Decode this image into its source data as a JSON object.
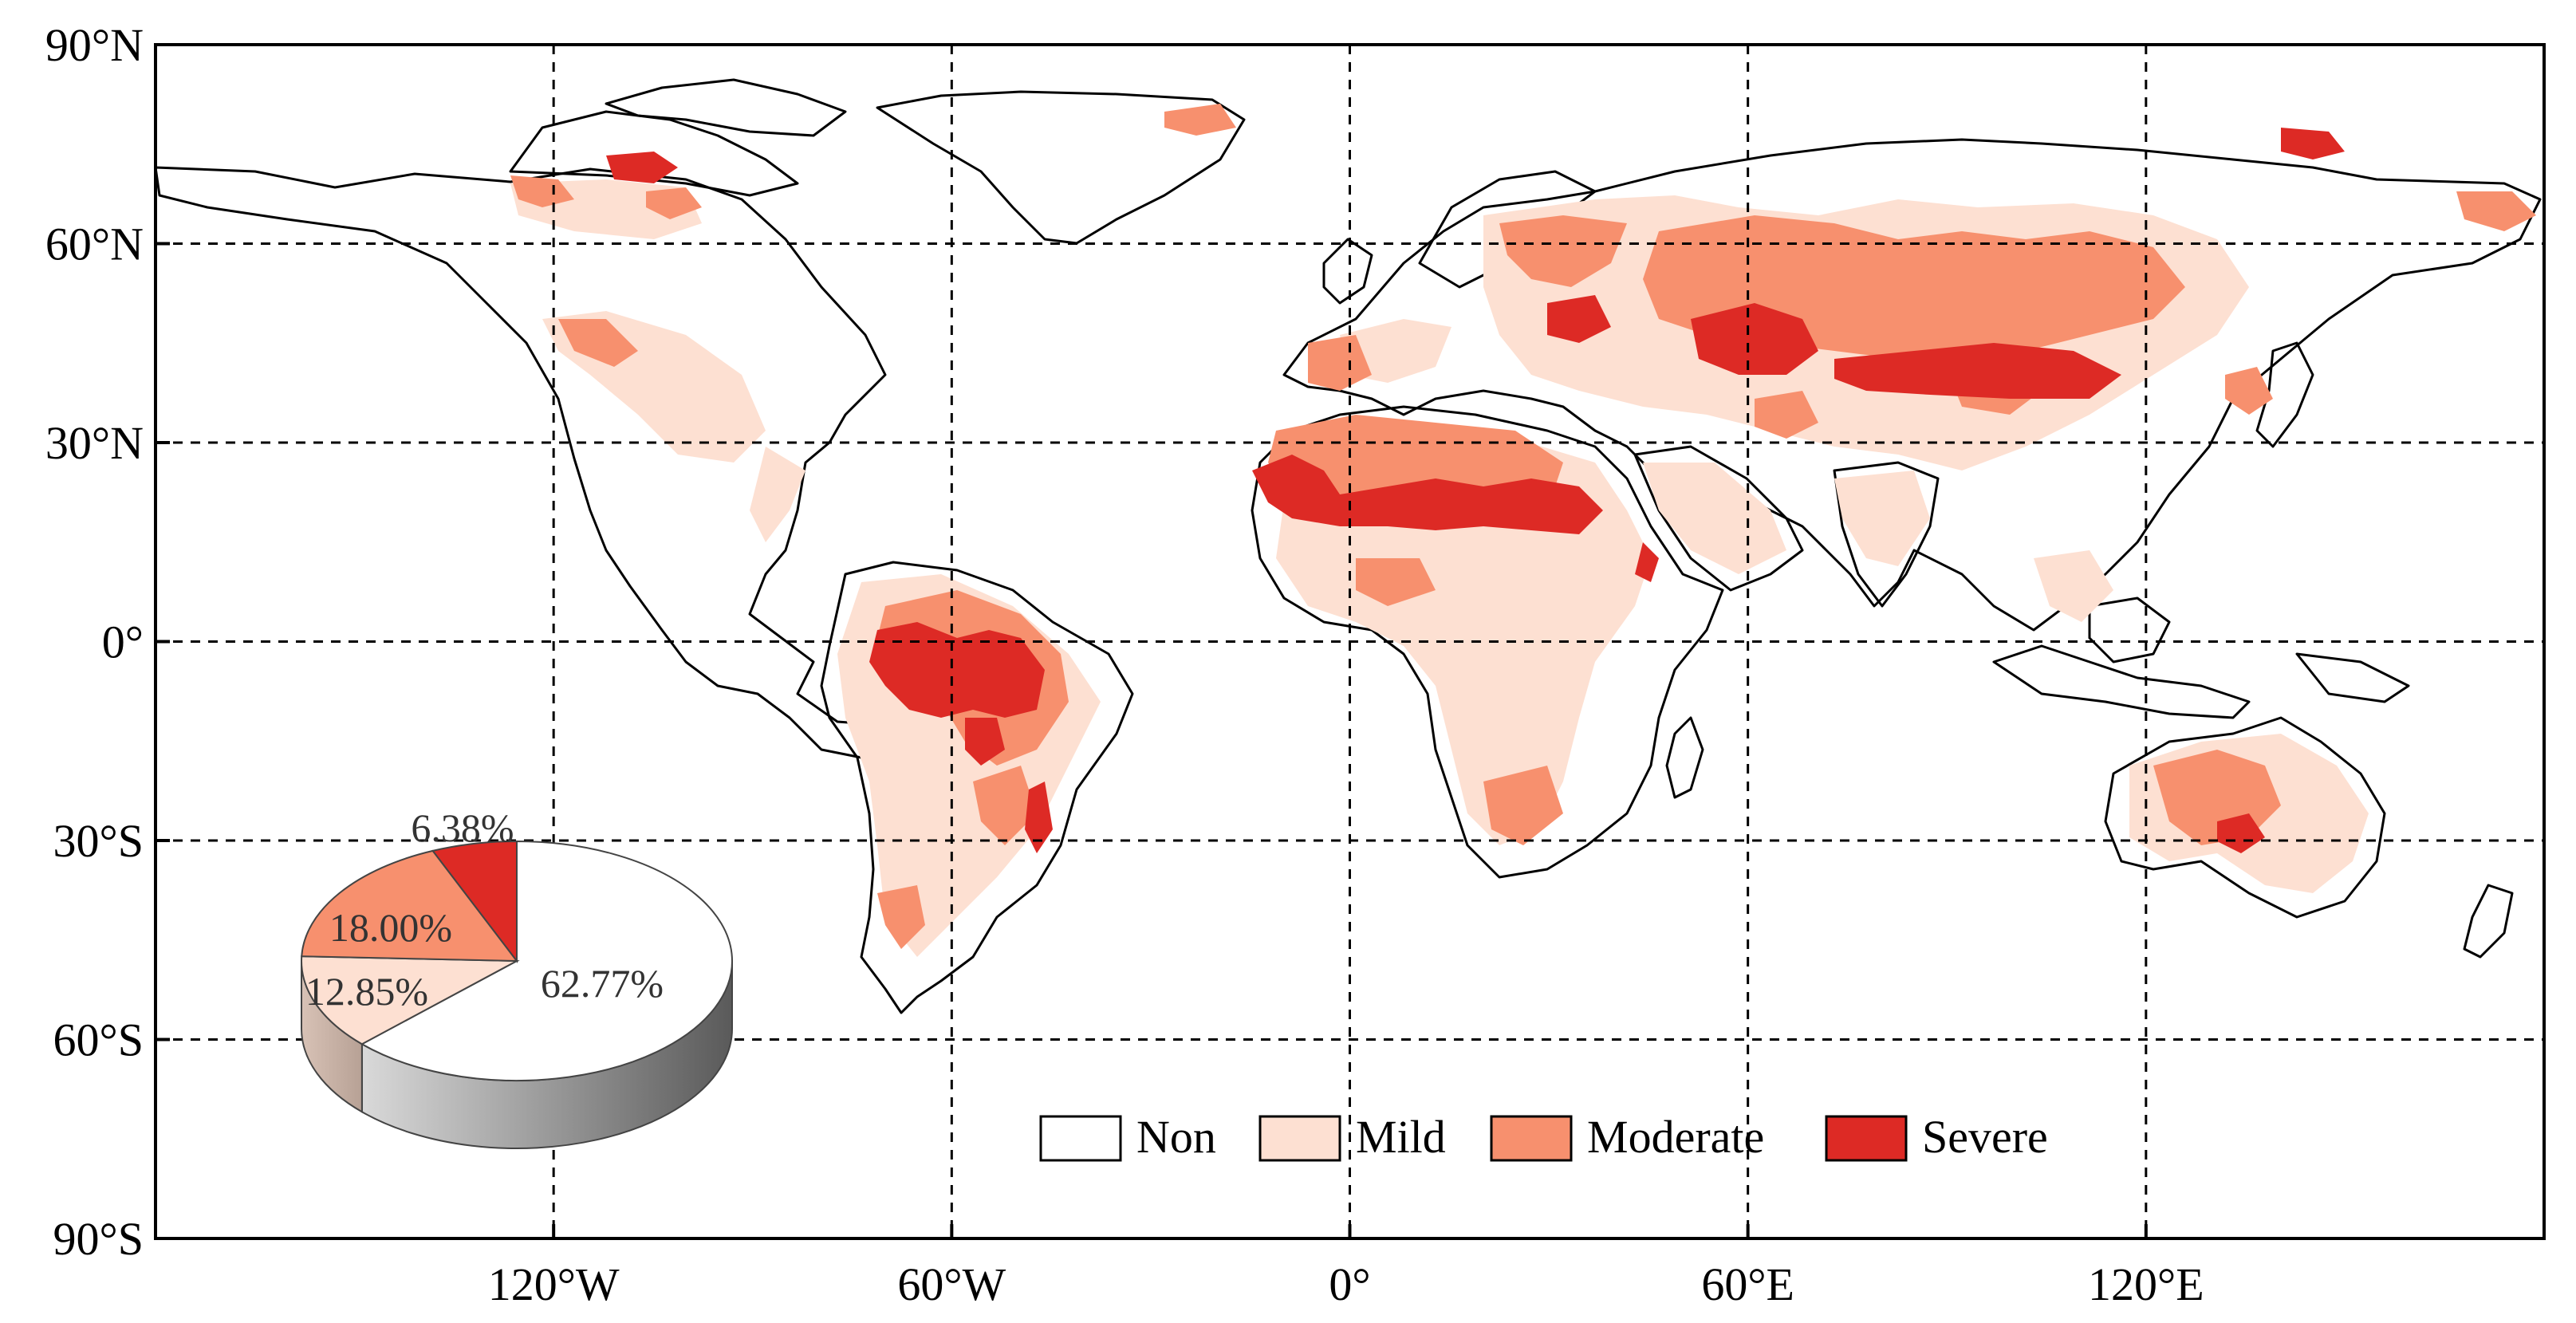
{
  "map": {
    "lat_labels": [
      "90°N",
      "60°N",
      "30°N",
      "0°",
      "30°S",
      "60°S",
      "90°S"
    ],
    "lon_labels": [
      "120°W",
      "60°W",
      "0°",
      "60°E",
      "120°E"
    ],
    "lat_values": [
      90,
      60,
      30,
      0,
      -30,
      -60,
      -90
    ],
    "lon_values": [
      -120,
      -60,
      0,
      60,
      120
    ],
    "lon_range": [
      -180,
      180
    ],
    "lat_range": [
      -90,
      90
    ],
    "grid": true,
    "projection": "equirectangular"
  },
  "legend": {
    "placement": "bottom-right",
    "items": [
      {
        "label": "Non",
        "color": "#ffffff"
      },
      {
        "label": "Mild",
        "color": "#fde0d2"
      },
      {
        "label": "Moderate",
        "color": "#f7906e"
      },
      {
        "label": "Severe",
        "color": "#dd2a25"
      }
    ]
  },
  "chart_data": {
    "type": "pie",
    "style": "3d",
    "placement": "bottom-left",
    "slices": [
      {
        "category": "Non",
        "value": 62.77,
        "label": "62.77%",
        "color": "#ffffff"
      },
      {
        "category": "Mild",
        "value": 12.85,
        "label": "12.85%",
        "color": "#fde0d2"
      },
      {
        "category": "Moderate",
        "value": 18.0,
        "label": "18.00%",
        "color": "#f7906e"
      },
      {
        "category": "Severe",
        "value": 6.38,
        "label": "6.38%",
        "color": "#dd2a25"
      }
    ]
  },
  "colors": {
    "non": "#ffffff",
    "mild": "#fde0d2",
    "moderate": "#f7906e",
    "severe": "#dd2a25",
    "coastline": "#000000"
  }
}
